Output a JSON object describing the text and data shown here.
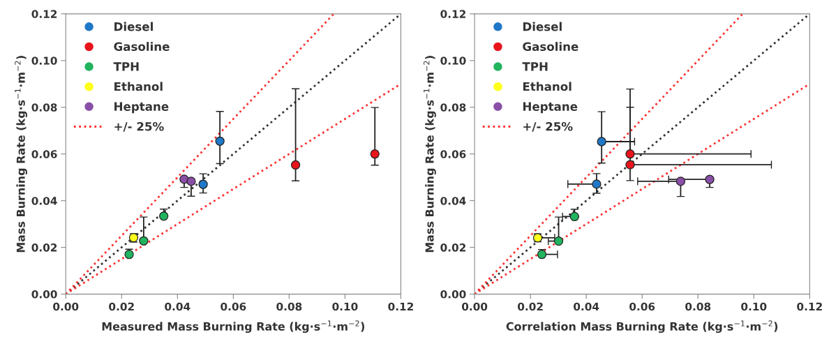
{
  "chart_data": [
    {
      "type": "scatter",
      "xlabel": "Measured Mass Burning Rate (kg·s$^{−1}$·m$^{−2}$)",
      "ylabel": "Mass Burning Rate (kg·s$^{−1}$·m$^{−2}$)",
      "xlim": [
        0,
        0.12
      ],
      "ylim": [
        0,
        0.12
      ],
      "xticks": [
        {
          "value": 0,
          "label": "0.00"
        },
        {
          "value": 0.02,
          "label": "0.02"
        },
        {
          "value": 0.04,
          "label": "0.04"
        },
        {
          "value": 0.06,
          "label": "0.06"
        },
        {
          "value": 0.08,
          "label": "0.08"
        },
        {
          "value": 0.1,
          "label": "0.10"
        },
        {
          "value": 0.12,
          "label": "0.12"
        }
      ],
      "yticks": [
        {
          "value": 0,
          "label": "0.00"
        },
        {
          "value": 0.02,
          "label": "0.02"
        },
        {
          "value": 0.04,
          "label": "0.04"
        },
        {
          "value": 0.06,
          "label": "0.06"
        },
        {
          "value": 0.08,
          "label": "0.08"
        },
        {
          "value": 0.1,
          "label": "0.10"
        },
        {
          "value": 0.12,
          "label": "0.12"
        }
      ],
      "legend": "top left",
      "marker": "circle",
      "series": [
        {
          "name": "Diesel",
          "color": "#1f78c8",
          "x": [
            0.0552,
            0.0492
          ],
          "values": [
            0.0655,
            0.047
          ],
          "errors": [
            [
              0.0559,
              0.0782
            ],
            [
              0.0433,
              0.0515
            ]
          ]
        },
        {
          "name": "Gasoline",
          "color": "#e8141c",
          "x": [
            0.0823,
            0.1107
          ],
          "values": [
            0.0553,
            0.06
          ],
          "errors": [
            [
              0.0485,
              0.0879
            ],
            [
              0.0552,
              0.0799
            ]
          ]
        },
        {
          "name": "TPH",
          "color": "#22b35e",
          "x": [
            0.0227,
            0.0279,
            0.0351
          ],
          "values": [
            0.017,
            0.0228,
            0.0334
          ],
          "errors": [
            [
              0.017,
              0.0192
            ],
            [
              0.0228,
              0.033
            ],
            [
              0.0334,
              0.0364
            ]
          ]
        },
        {
          "name": "Ethanol",
          "color": "#ffff1a",
          "x": [
            0.0243
          ],
          "values": [
            0.0242
          ],
          "errors": [
            [
              0.0223,
              0.0259
            ]
          ]
        },
        {
          "name": "Heptane",
          "color": "#8a4fa6",
          "x": [
            0.0424,
            0.0449
          ],
          "values": [
            0.0492,
            0.0483
          ],
          "errors": [
            [
              0.0457,
              0.0492
            ],
            [
              0.0419,
              0.0483
            ]
          ]
        },
        {
          "type": "line",
          "color": "#333333",
          "line_style": "dotted",
          "marker": "none",
          "x": [
            0,
            0.12
          ],
          "values": [
            0,
            0.12
          ]
        },
        {
          "name": "+/- 25%",
          "type": "line",
          "color": "#ff3030",
          "line_style": "dotted",
          "marker": "none",
          "x": [
            0,
            0.096
          ],
          "values": [
            0,
            0.12
          ]
        },
        {
          "type": "line",
          "color": "#ff3030",
          "line_style": "dotted",
          "marker": "none",
          "x": [
            0,
            0.12
          ],
          "values": [
            0,
            0.09
          ]
        }
      ]
    },
    {
      "type": "scatter",
      "xlabel": "Correlation Mass Burning Rate (kg·s$^{−1}$·m$^{−2}$)",
      "ylabel": "Mass Burning Rate (kg·s$^{−1}$·m$^{−2}$)",
      "xlim": [
        0,
        0.12
      ],
      "ylim": [
        0,
        0.12
      ],
      "xticks": [
        {
          "value": 0,
          "label": "0.00"
        },
        {
          "value": 0.02,
          "label": "0.02"
        },
        {
          "value": 0.04,
          "label": "0.04"
        },
        {
          "value": 0.06,
          "label": "0.06"
        },
        {
          "value": 0.08,
          "label": "0.08"
        },
        {
          "value": 0.1,
          "label": "0.10"
        },
        {
          "value": 0.12,
          "label": "0.12"
        }
      ],
      "yticks": [
        {
          "value": 0,
          "label": "0.00"
        },
        {
          "value": 0.02,
          "label": "0.02"
        },
        {
          "value": 0.04,
          "label": "0.04"
        },
        {
          "value": 0.06,
          "label": "0.06"
        },
        {
          "value": 0.08,
          "label": "0.08"
        },
        {
          "value": 0.1,
          "label": "0.10"
        },
        {
          "value": 0.12,
          "label": "0.12"
        }
      ],
      "legend": "top left",
      "marker": "circle",
      "series": [
        {
          "name": "Diesel",
          "color": "#1f78c8",
          "x": [
            0.0455,
            0.0437
          ],
          "values": [
            0.0653,
            0.0471
          ],
          "errors": [
            [
              0.0561,
              0.0781
            ],
            [
              0.0432,
              0.0516
            ]
          ],
          "xerrors": [
            [
              0.0455,
              0.0573
            ],
            [
              0.0334,
              0.0437
            ]
          ]
        },
        {
          "name": "Gasoline",
          "color": "#e8141c",
          "x": [
            0.0557,
            0.0557
          ],
          "values": [
            0.06,
            0.0554
          ],
          "errors": [
            [
              0.06,
              0.08
            ],
            [
              0.0486,
              0.0878
            ]
          ],
          "xerrors": [
            [
              0.0557,
              0.099
            ],
            [
              0.0557,
              0.1063
            ]
          ]
        },
        {
          "name": "TPH",
          "color": "#22b35e",
          "x": [
            0.0241,
            0.0301,
            0.0358
          ],
          "values": [
            0.017,
            0.0227,
            0.0332
          ],
          "errors": [
            [
              0.017,
              0.0191
            ],
            [
              0.0227,
              0.033
            ],
            [
              0.0332,
              0.0363
            ]
          ],
          "xerrors": [
            [
              0.0241,
              0.0297
            ],
            [
              0.0264,
              0.0301
            ],
            [
              0.0315,
              0.0358
            ]
          ]
        },
        {
          "name": "Ethanol",
          "color": "#ffff1a",
          "x": [
            0.0226
          ],
          "values": [
            0.0241
          ],
          "errors": [
            [
              0.0224,
              0.0258
            ]
          ],
          "xerrors": [
            [
              0.0226,
              0.0287
            ]
          ]
        },
        {
          "name": "Heptane",
          "color": "#8a4fa6",
          "x": [
            0.0738,
            0.0842
          ],
          "values": [
            0.0483,
            0.0491
          ],
          "errors": [
            [
              0.0418,
              0.0483
            ],
            [
              0.0457,
              0.0491
            ]
          ],
          "xerrors": [
            [
              0.0584,
              0.0738
            ],
            [
              0.0695,
              0.0842
            ]
          ]
        },
        {
          "type": "line",
          "color": "#333333",
          "line_style": "dotted",
          "marker": "none",
          "x": [
            0,
            0.12
          ],
          "values": [
            0,
            0.12
          ]
        },
        {
          "name": "+/- 25%",
          "type": "line",
          "color": "#ff3030",
          "line_style": "dotted",
          "marker": "none",
          "x": [
            0,
            0.096
          ],
          "values": [
            0,
            0.12
          ]
        },
        {
          "type": "line",
          "color": "#ff3030",
          "line_style": "dotted",
          "marker": "none",
          "x": [
            0,
            0.12
          ],
          "values": [
            0,
            0.09
          ]
        }
      ]
    }
  ]
}
